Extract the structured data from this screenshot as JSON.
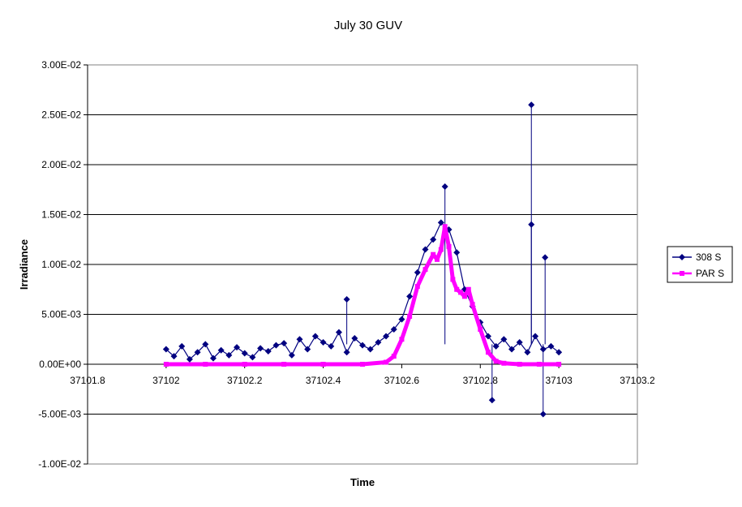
{
  "chart_data": {
    "type": "scatter",
    "title": "July 30 GUV",
    "xlabel": "Time",
    "ylabel": "Irradiance",
    "xlim": [
      37101.8,
      37103.2
    ],
    "ylim": [
      -0.01,
      0.03
    ],
    "x_ticks": [
      "37101.8",
      "37102",
      "37102.2",
      "37102.4",
      "37102.6",
      "37102.8",
      "37103",
      "37103.2"
    ],
    "x_tick_values": [
      37101.8,
      37102.0,
      37102.2,
      37102.4,
      37102.6,
      37102.8,
      37103.0,
      37103.2
    ],
    "y_ticks": [
      "3.00E-02",
      "2.50E-02",
      "2.00E-02",
      "1.50E-02",
      "1.00E-02",
      "5.00E-03",
      "0.00E+00",
      "-5.00E-03",
      "-1.00E-02"
    ],
    "y_tick_values": [
      0.03,
      0.025,
      0.02,
      0.015,
      0.01,
      0.005,
      0.0,
      -0.005,
      -0.01
    ],
    "grid": "horizontal major",
    "legend_position": "right",
    "series": [
      {
        "name": "308 S",
        "color": "#000080",
        "marker": "diamond",
        "x": [
          37102.0,
          37102.02,
          37102.04,
          37102.06,
          37102.08,
          37102.1,
          37102.12,
          37102.14,
          37102.16,
          37102.18,
          37102.2,
          37102.22,
          37102.24,
          37102.26,
          37102.28,
          37102.3,
          37102.32,
          37102.34,
          37102.36,
          37102.38,
          37102.4,
          37102.42,
          37102.44,
          37102.46,
          37102.48,
          37102.5,
          37102.52,
          37102.54,
          37102.56,
          37102.58,
          37102.6,
          37102.62,
          37102.64,
          37102.66,
          37102.68,
          37102.7,
          37102.72,
          37102.74,
          37102.76,
          37102.78,
          37102.8,
          37102.82,
          37102.84,
          37102.86,
          37102.88,
          37102.9,
          37102.92,
          37102.94,
          37102.96,
          37102.98,
          37103.0
        ],
        "y": [
          0.0015,
          0.0008,
          0.0018,
          0.0005,
          0.0012,
          0.002,
          0.0006,
          0.0014,
          0.0009,
          0.0017,
          0.0011,
          0.0007,
          0.0016,
          0.0013,
          0.0019,
          0.0021,
          0.0009,
          0.0025,
          0.0015,
          0.0028,
          0.0022,
          0.0018,
          0.0032,
          0.0012,
          0.0026,
          0.0019,
          0.0015,
          0.0022,
          0.0028,
          0.0035,
          0.0045,
          0.0068,
          0.0092,
          0.0115,
          0.0125,
          0.0142,
          0.0135,
          0.0112,
          0.0075,
          0.0058,
          0.0042,
          0.0028,
          0.0018,
          0.0025,
          0.0015,
          0.0022,
          0.0012,
          0.0028,
          0.0015,
          0.0018,
          0.0012
        ]
      },
      {
        "name": "PAR S",
        "color": "#FF00FF",
        "marker": "square",
        "x": [
          37102.0,
          37102.1,
          37102.2,
          37102.3,
          37102.4,
          37102.5,
          37102.56,
          37102.58,
          37102.6,
          37102.62,
          37102.64,
          37102.66,
          37102.68,
          37102.69,
          37102.7,
          37102.71,
          37102.72,
          37102.73,
          37102.74,
          37102.75,
          37102.76,
          37102.77,
          37102.78,
          37102.8,
          37102.82,
          37102.84,
          37102.86,
          37102.9,
          37102.95,
          37103.0
        ],
        "y": [
          0.0,
          0.0,
          0.0,
          0.0,
          0.0,
          0.0,
          0.0002,
          0.0008,
          0.0025,
          0.0048,
          0.0078,
          0.0095,
          0.011,
          0.0105,
          0.0115,
          0.0138,
          0.0118,
          0.0085,
          0.0075,
          0.0072,
          0.0068,
          0.0075,
          0.006,
          0.0035,
          0.0012,
          0.0003,
          0.0001,
          0.0,
          0.0,
          0.0
        ]
      }
    ],
    "annotations": [
      {
        "x": 37102.93,
        "y": 0.026,
        "series": "308 S"
      },
      {
        "x": 37102.93,
        "y": 0.014,
        "series": "308 S"
      },
      {
        "x": 37102.965,
        "y": 0.0107,
        "series": "308 S"
      },
      {
        "x": 37102.96,
        "y": -0.005,
        "series": "308 S"
      },
      {
        "x": 37102.71,
        "y": 0.0178,
        "series": "308 S"
      },
      {
        "x": 37102.83,
        "y": -0.0036,
        "series": "308 S"
      },
      {
        "x": 37102.46,
        "y": 0.0065,
        "series": "308 S"
      }
    ]
  }
}
